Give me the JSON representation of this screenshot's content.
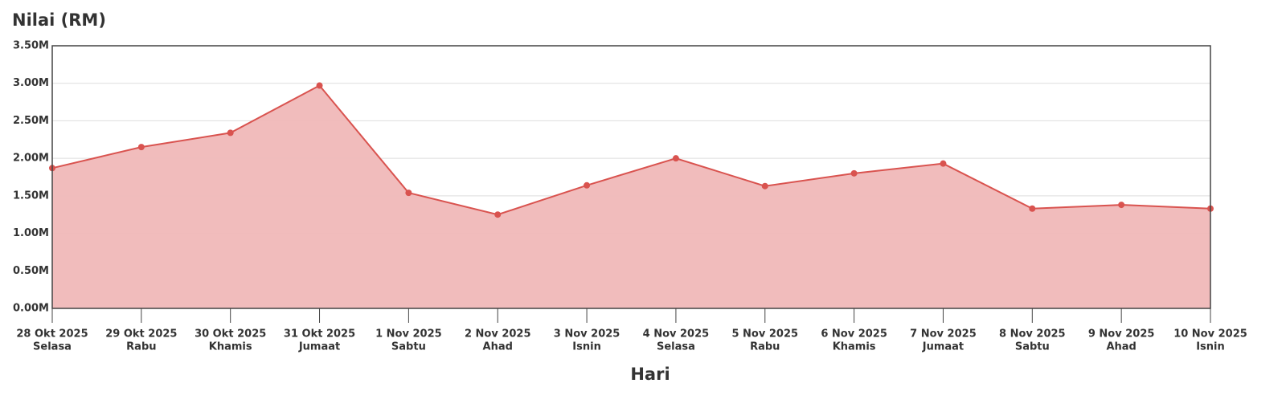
{
  "chart_data": {
    "type": "area",
    "title": "Nilai (RM)",
    "x_label": "Hari",
    "categories": [
      "28 Okt 2025",
      "29 Okt 2025",
      "30 Okt 2025",
      "31 Okt 2025",
      "1 Nov 2025",
      "2 Nov 2025",
      "3 Nov 2025",
      "4 Nov 2025",
      "5 Nov 2025",
      "6 Nov 2025",
      "7 Nov 2025",
      "8 Nov 2025",
      "9 Nov 2025",
      "10 Nov 2025"
    ],
    "category_sublabels": [
      "Selasa",
      "Rabu",
      "Khamis",
      "Jumaat",
      "Sabtu",
      "Ahad",
      "Isnin",
      "Selasa",
      "Rabu",
      "Khamis",
      "Jumaat",
      "Sabtu",
      "Ahad",
      "Isnin"
    ],
    "values": [
      1870000,
      2150000,
      2340000,
      2970000,
      1540000,
      1250000,
      1640000,
      2000000,
      1630000,
      1800000,
      1930000,
      1330000,
      1380000,
      1330000
    ],
    "color": "#d9534f",
    "fill_color": "#f0b8b8",
    "ylim": [
      0,
      3500000
    ],
    "yticks": [
      {
        "value": 0,
        "label": "0.00M"
      },
      {
        "value": 500000,
        "label": "0.50M"
      },
      {
        "value": 1000000,
        "label": "1.00M"
      },
      {
        "value": 1500000,
        "label": "1.50M"
      },
      {
        "value": 2000000,
        "label": "2.00M"
      },
      {
        "value": 2500000,
        "label": "2.50M"
      },
      {
        "value": 3000000,
        "label": "3.00M"
      },
      {
        "value": 3500000,
        "label": "3.50M"
      }
    ],
    "grid": true
  }
}
